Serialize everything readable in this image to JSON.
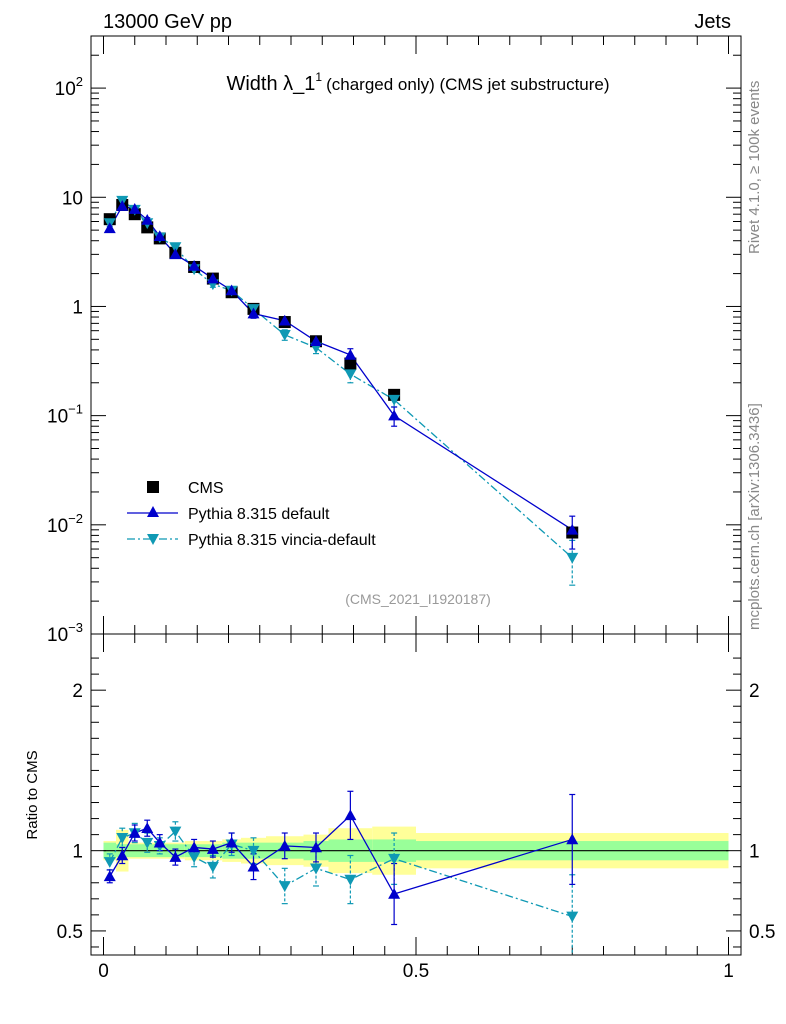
{
  "header": {
    "left": "13000 GeV pp",
    "right": "Jets",
    "side_top": "Rivet 4.1.0, ≥ 100k events",
    "side_bottom": "mcplots.cern.ch [arXiv:1306.3436]"
  },
  "colors": {
    "cms": "#000000",
    "pythia_default": "#0000cc",
    "pythia_vincia": "#0f99b4",
    "band_inner": "#99ff99",
    "band_outer": "#ffff99"
  },
  "chart_data": [
    {
      "type": "line",
      "title": "Width λ_1",
      "title_sup": "1",
      "title_suffix": "(charged only) (CMS jet substructure)",
      "analysis_label": "(CMS_2021_I1920187)",
      "yscale": "log",
      "ylim": [
        0.001,
        300
      ],
      "yticks": [
        {
          "value": 100,
          "base": "10",
          "exp": "2"
        },
        {
          "value": 10,
          "base": "10",
          "exp": ""
        },
        {
          "value": 1,
          "base": "1",
          "exp": ""
        },
        {
          "value": 0.1,
          "base": "10",
          "exp": "−1"
        },
        {
          "value": 0.01,
          "base": "10",
          "exp": "−2"
        },
        {
          "value": 0.001,
          "base": "10",
          "exp": "−3"
        }
      ],
      "xlim": [
        -0.02,
        1.02
      ],
      "legend": {
        "position": "bottom-left",
        "entries": [
          "CMS",
          "Pythia 8.315 default",
          "Pythia 8.315 vincia-default"
        ]
      },
      "x": [
        0.01,
        0.03,
        0.05,
        0.07,
        0.09,
        0.115,
        0.145,
        0.175,
        0.205,
        0.24,
        0.29,
        0.34,
        0.395,
        0.465,
        0.75
      ],
      "series": [
        {
          "name": "CMS",
          "values": [
            6.3,
            8.5,
            7.0,
            5.3,
            4.2,
            3.1,
            2.3,
            1.8,
            1.35,
            0.95,
            0.72,
            0.48,
            0.3,
            0.155,
            0.0085
          ]
        },
        {
          "name": "Pythia 8.315 default",
          "values": [
            5.2,
            8.3,
            7.8,
            6.2,
            4.4,
            3.0,
            2.35,
            1.8,
            1.4,
            0.86,
            0.74,
            0.48,
            0.36,
            0.1,
            0.009
          ],
          "errors": [
            0.4,
            0.4,
            0.35,
            0.3,
            0.2,
            0.15,
            0.1,
            0.1,
            0.08,
            0.08,
            0.06,
            0.05,
            0.05,
            0.02,
            0.003
          ]
        },
        {
          "name": "Pythia 8.315 vincia-default",
          "values": [
            5.8,
            9.3,
            7.7,
            5.8,
            4.3,
            3.5,
            2.2,
            1.6,
            1.4,
            0.95,
            0.55,
            0.42,
            0.24,
            0.14,
            0.005
          ],
          "errors": [
            0.4,
            0.4,
            0.35,
            0.3,
            0.2,
            0.15,
            0.12,
            0.1,
            0.08,
            0.08,
            0.06,
            0.05,
            0.04,
            0.02,
            0.0022
          ]
        }
      ]
    },
    {
      "type": "line",
      "ylabel": "Ratio to CMS",
      "ylim": [
        0.35,
        2.35
      ],
      "yticks": [
        0.5,
        1,
        2
      ],
      "xlim": [
        -0.02,
        1.02
      ],
      "xticks": [
        0,
        0.5,
        1
      ],
      "band_edges": [
        0.0,
        0.02,
        0.04,
        0.06,
        0.08,
        0.1,
        0.13,
        0.16,
        0.19,
        0.22,
        0.26,
        0.32,
        0.36,
        0.43,
        0.5,
        1.0
      ],
      "band_inner": [
        0.05,
        0.04,
        0.04,
        0.04,
        0.04,
        0.04,
        0.04,
        0.04,
        0.05,
        0.05,
        0.05,
        0.06,
        0.07,
        0.07,
        0.06
      ],
      "band_outer": [
        0.06,
        0.13,
        0.05,
        0.05,
        0.05,
        0.05,
        0.06,
        0.06,
        0.07,
        0.08,
        0.09,
        0.1,
        0.14,
        0.15,
        0.11
      ],
      "x": [
        0.01,
        0.03,
        0.05,
        0.07,
        0.09,
        0.115,
        0.145,
        0.175,
        0.205,
        0.24,
        0.29,
        0.34,
        0.395,
        0.465,
        0.75
      ],
      "series": [
        {
          "name": "Pythia 8.315 default",
          "values": [
            0.84,
            0.97,
            1.11,
            1.14,
            1.05,
            0.96,
            1.02,
            1.01,
            1.05,
            0.9,
            1.03,
            1.02,
            1.22,
            0.73,
            1.07
          ],
          "errors": [
            0.04,
            0.05,
            0.05,
            0.05,
            0.05,
            0.05,
            0.05,
            0.05,
            0.06,
            0.08,
            0.08,
            0.09,
            0.15,
            0.19,
            0.28
          ]
        },
        {
          "name": "Pythia 8.315 vincia-default",
          "values": [
            0.93,
            1.08,
            1.11,
            1.05,
            1.03,
            1.12,
            0.96,
            0.9,
            1.04,
            1.0,
            0.78,
            0.89,
            0.82,
            0.95,
            0.59
          ],
          "errors": [
            0.05,
            0.06,
            0.06,
            0.06,
            0.05,
            0.06,
            0.06,
            0.07,
            0.07,
            0.08,
            0.11,
            0.11,
            0.15,
            0.16,
            0.26
          ]
        }
      ]
    }
  ]
}
